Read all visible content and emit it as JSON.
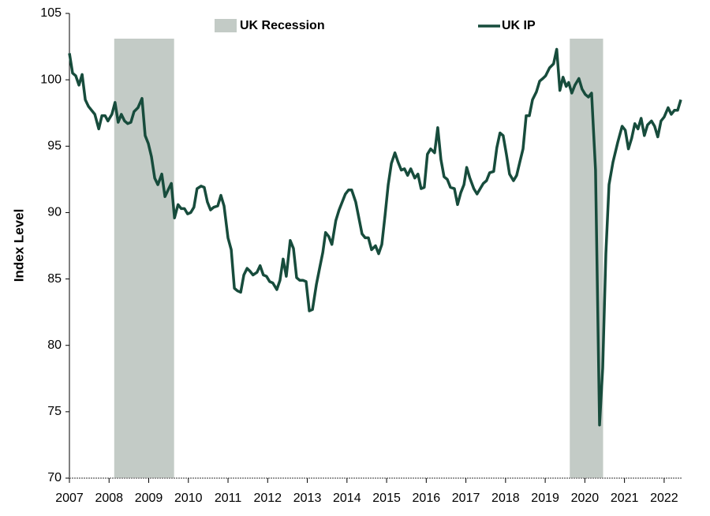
{
  "chart_data": {
    "type": "line",
    "y_label": "Index Level",
    "xlim": [
      2007,
      2022.46
    ],
    "xticks": [
      2007,
      2008,
      2009,
      2010,
      2011,
      2012,
      2013,
      2014,
      2015,
      2016,
      2017,
      2018,
      2019,
      2020,
      2021,
      2022
    ],
    "ylim": [
      70,
      105
    ],
    "yticks": [
      70,
      75,
      80,
      85,
      90,
      95,
      100,
      105
    ],
    "recession": {
      "name": "UK Recession",
      "color": "#c3cbc6",
      "top": 103.1,
      "spans": [
        [
          2008.13,
          2009.64
        ],
        [
          2019.62,
          2020.46
        ]
      ]
    },
    "series": [
      {
        "name": "UK IP",
        "color": "#174c3c",
        "x": [
          2007.0,
          2007.08,
          2007.16,
          2007.24,
          2007.32,
          2007.4,
          2007.48,
          2007.64,
          2007.74,
          2007.82,
          2007.9,
          2007.97,
          2008.07,
          2008.15,
          2008.23,
          2008.31,
          2008.39,
          2008.47,
          2008.55,
          2008.63,
          2008.73,
          2008.83,
          2008.91,
          2008.99,
          2009.07,
          2009.15,
          2009.23,
          2009.33,
          2009.41,
          2009.49,
          2009.57,
          2009.65,
          2009.74,
          2009.82,
          2009.9,
          2009.98,
          2010.06,
          2010.14,
          2010.22,
          2010.32,
          2010.4,
          2010.48,
          2010.56,
          2010.64,
          2010.74,
          2010.82,
          2010.9,
          2011.0,
          2011.08,
          2011.16,
          2011.24,
          2011.32,
          2011.4,
          2011.48,
          2011.55,
          2011.63,
          2011.73,
          2011.81,
          2011.89,
          2011.97,
          2012.05,
          2012.13,
          2012.23,
          2012.31,
          2012.39,
          2012.47,
          2012.57,
          2012.65,
          2012.73,
          2012.81,
          2012.89,
          2012.97,
          2013.05,
          2013.13,
          2013.23,
          2013.31,
          2013.39,
          2013.46,
          2013.54,
          2013.62,
          2013.72,
          2013.8,
          2013.88,
          2013.96,
          2014.04,
          2014.12,
          2014.22,
          2014.3,
          2014.38,
          2014.46,
          2014.54,
          2014.62,
          2014.72,
          2014.8,
          2014.88,
          2014.96,
          2015.04,
          2015.12,
          2015.21,
          2015.29,
          2015.37,
          2015.45,
          2015.53,
          2015.61,
          2015.71,
          2015.79,
          2015.87,
          2015.95,
          2016.03,
          2016.11,
          2016.21,
          2016.29,
          2016.37,
          2016.45,
          2016.53,
          2016.61,
          2016.71,
          2016.79,
          2016.87,
          2016.95,
          2017.02,
          2017.1,
          2017.2,
          2017.28,
          2017.36,
          2017.44,
          2017.52,
          2017.6,
          2017.7,
          2017.78,
          2017.86,
          2017.94,
          2018.02,
          2018.1,
          2018.2,
          2018.28,
          2018.36,
          2018.44,
          2018.52,
          2018.6,
          2018.68,
          2018.78,
          2018.86,
          2018.94,
          2019.01,
          2019.11,
          2019.21,
          2019.29,
          2019.37,
          2019.45,
          2019.53,
          2019.59,
          2019.67,
          2019.75,
          2019.85,
          2019.93,
          2020.01,
          2020.09,
          2020.17,
          2020.27,
          2020.37,
          2020.45,
          2020.53,
          2020.61,
          2020.71,
          2020.83,
          2020.94,
          2021.02,
          2021.1,
          2021.18,
          2021.26,
          2021.34,
          2021.42,
          2021.5,
          2021.58,
          2021.68,
          2021.76,
          2021.84,
          2021.92,
          2022.0,
          2022.1,
          2022.18,
          2022.26,
          2022.34,
          2022.42
        ],
        "values": [
          102,
          100.5,
          100.3,
          99.6,
          100.4,
          98.5,
          98,
          97.4,
          96.3,
          97.3,
          97.3,
          96.9,
          97.4,
          98.3,
          96.8,
          97.4,
          96.9,
          96.7,
          96.8,
          97.6,
          97.9,
          98.6,
          95.8,
          95.2,
          94.2,
          92.6,
          92.1,
          92.9,
          91.2,
          91.7,
          92.2,
          89.6,
          90.6,
          90.3,
          90.3,
          89.9,
          90.0,
          90.4,
          91.8,
          92.0,
          91.9,
          90.8,
          90.2,
          90.4,
          90.5,
          91.3,
          90.5,
          88.1,
          87.2,
          84.3,
          84.1,
          84.0,
          85.3,
          85.8,
          85.6,
          85.3,
          85.5,
          86.0,
          85.3,
          85.2,
          84.8,
          84.7,
          84.2,
          84.9,
          86.5,
          85.2,
          87.9,
          87.3,
          85.1,
          84.9,
          84.9,
          84.8,
          82.6,
          82.7,
          84.6,
          85.8,
          87.0,
          88.5,
          88.2,
          87.6,
          89.4,
          90.2,
          90.8,
          91.4,
          91.7,
          91.7,
          90.8,
          89.6,
          88.4,
          88.1,
          88.1,
          87.2,
          87.5,
          86.9,
          87.6,
          89.8,
          92.1,
          93.7,
          94.5,
          93.8,
          93.2,
          93.3,
          92.8,
          93.3,
          92.6,
          92.9,
          91.8,
          91.9,
          94.4,
          94.8,
          94.5,
          96.4,
          94.0,
          92.7,
          92.5,
          91.9,
          91.8,
          90.6,
          91.5,
          92.1,
          93.4,
          92.6,
          91.8,
          91.4,
          91.8,
          92.2,
          92.4,
          93.0,
          93.1,
          94.9,
          96.0,
          95.8,
          94.4,
          92.9,
          92.4,
          92.8,
          93.8,
          94.8,
          97.3,
          97.3,
          98.5,
          99.1,
          99.9,
          100.1,
          100.3,
          100.9,
          101.2,
          102.3,
          99.2,
          100.2,
          99.5,
          99.8,
          99.0,
          99.6,
          100.1,
          99.3,
          98.9,
          98.7,
          99.0,
          93.2,
          74.0,
          78.3,
          86.9,
          92.1,
          93.8,
          95.3,
          96.5,
          96.2,
          94.8,
          95.6,
          96.7,
          96.3,
          97.1,
          95.8,
          96.6,
          96.9,
          96.5,
          95.7,
          96.9,
          97.2,
          97.9,
          97.4,
          97.7,
          97.7,
          98.5
        ]
      }
    ]
  }
}
